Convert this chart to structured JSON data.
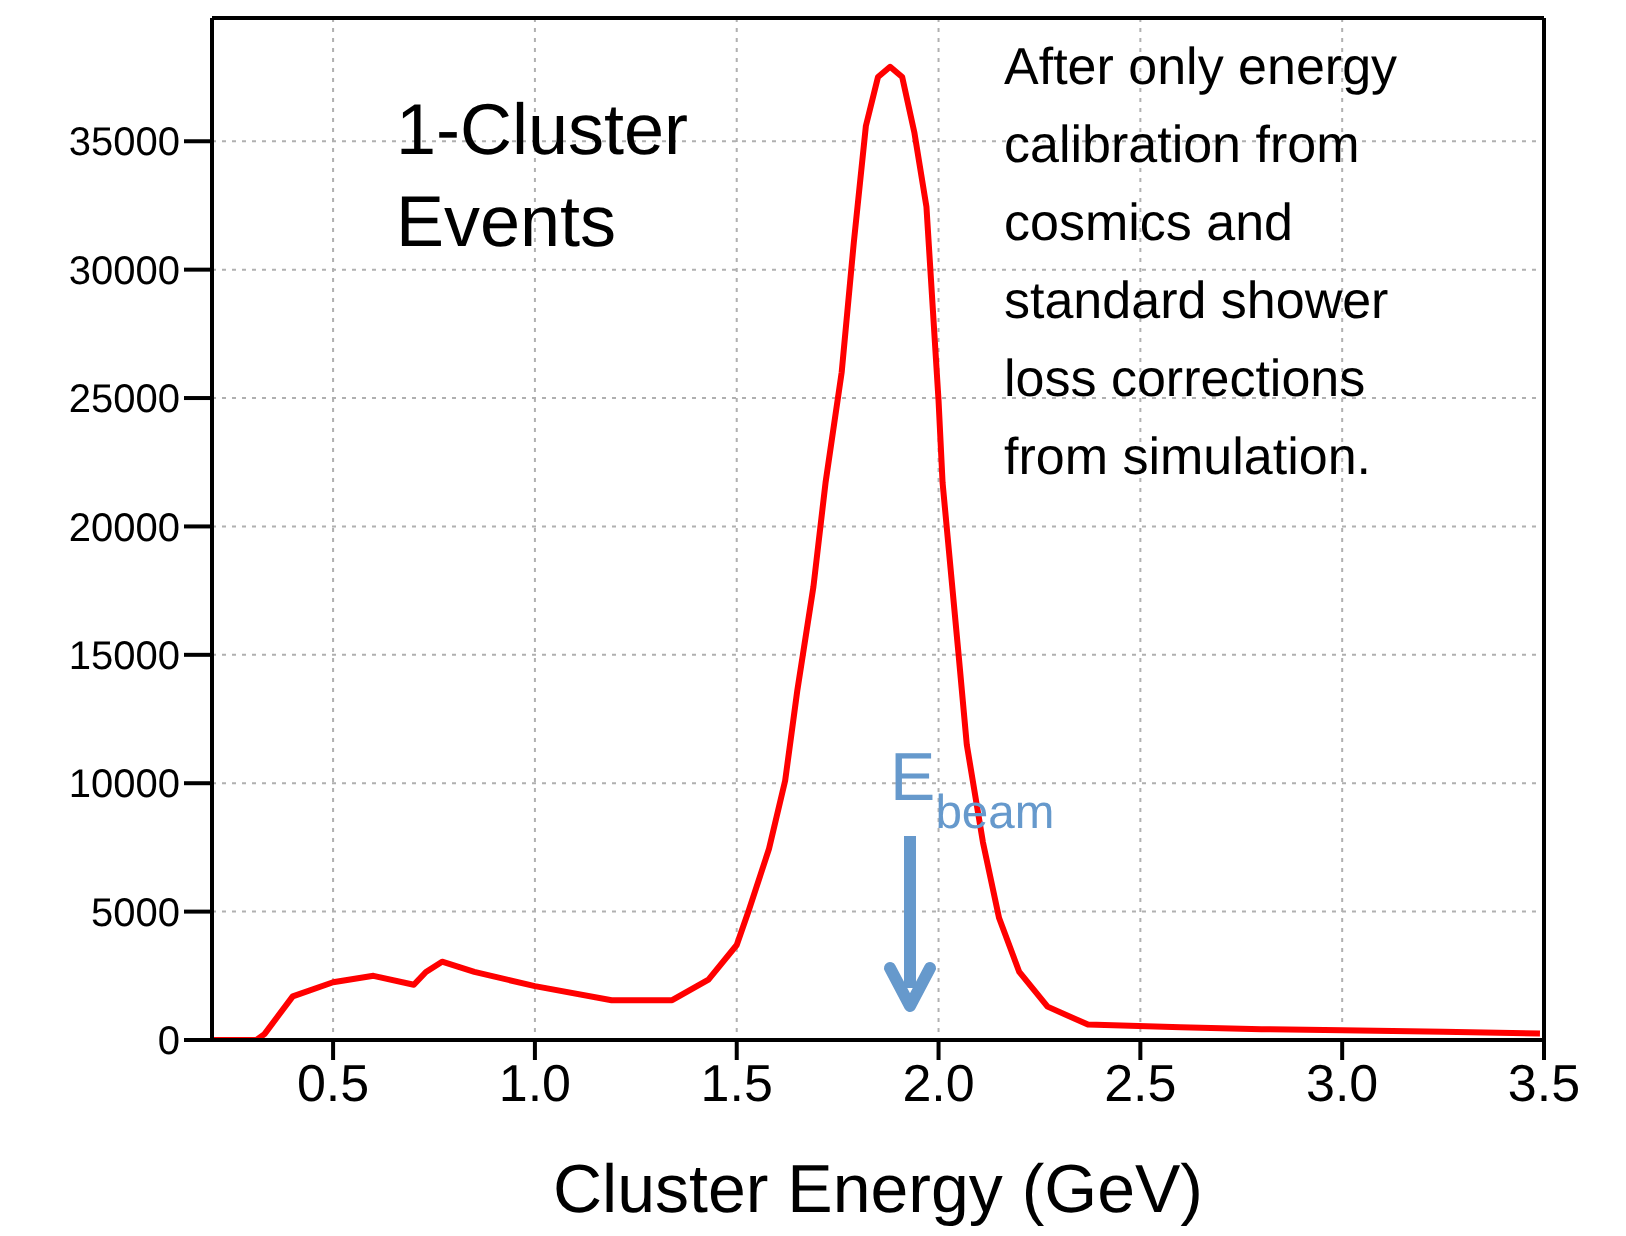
{
  "chart_data": {
    "type": "line",
    "title": "1-Cluster Events",
    "xlabel": "Cluster Energy  (GeV)",
    "annotations": [
      "After only energy calibration from cosmics and standard shower loss corrections from simulation.",
      "E$_{beam}$"
    ],
    "x": [
      0.2,
      0.31,
      0.33,
      0.4,
      0.5,
      0.6,
      0.7,
      0.73,
      0.77,
      0.85,
      1.0,
      1.19,
      1.34,
      1.43,
      1.5,
      1.53,
      1.58,
      1.62,
      1.65,
      1.69,
      1.72,
      1.76,
      1.79,
      1.82,
      1.85,
      1.88,
      1.91,
      1.94,
      1.97,
      2.0,
      2.01,
      2.05,
      2.07,
      2.11,
      2.15,
      2.2,
      2.27,
      2.37,
      2.6,
      2.8,
      3.0,
      3.25,
      3.49
    ],
    "series": [
      {
        "color": "#ff0000",
        "values": [
          0,
          0,
          230,
          1700,
          2250,
          2500,
          2150,
          2650,
          3050,
          2650,
          2100,
          1550,
          1550,
          2350,
          3700,
          5050,
          7450,
          10100,
          13600,
          17650,
          21700,
          26000,
          31050,
          35600,
          37500,
          37900,
          37500,
          35350,
          32450,
          24900,
          21700,
          14950,
          11500,
          7700,
          4750,
          2650,
          1300,
          600,
          500,
          420,
          380,
          320,
          250
        ]
      }
    ],
    "xlim": [
      0.2,
      3.5
    ],
    "xticks": [
      0.5,
      {
        "value": 1,
        "label": "1.0"
      },
      1.5,
      {
        "value": 2,
        "label": "2.0"
      },
      2.5,
      {
        "value": 3,
        "label": "3.0"
      },
      3.5
    ],
    "ylim": [
      0,
      39800
    ],
    "yticks": [
      0,
      5000,
      10000,
      15000,
      20000,
      25000,
      30000,
      35000
    ],
    "grid": true,
    "marker": "none",
    "line_style": "solid"
  }
}
